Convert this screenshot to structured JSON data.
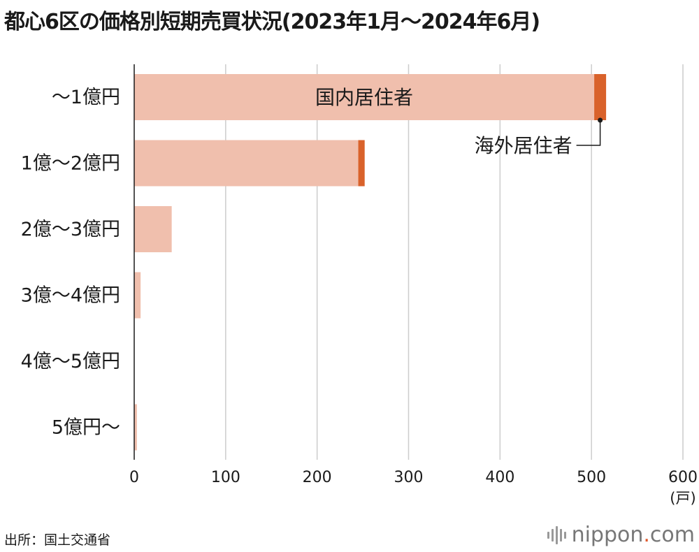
{
  "title": "都心6区の価格別短期売買状況(2023年1月〜2024年6月)",
  "source": "出所：国土交通省",
  "logo": {
    "name": "nippon",
    "dot": ".",
    "tld": "com"
  },
  "chart_data": {
    "type": "bar",
    "orientation": "horizontal",
    "stacked": true,
    "categories": [
      "〜1億円",
      "1億〜2億円",
      "2億〜3億円",
      "3億〜4億円",
      "4億〜5億円",
      "5億円〜"
    ],
    "series": [
      {
        "name": "国内居住者",
        "values": [
          503,
          245,
          41,
          7,
          0,
          3
        ],
        "color": "#f0bfad"
      },
      {
        "name": "海外居住者",
        "values": [
          13,
          7,
          0,
          0,
          0,
          0
        ],
        "color": "#d9622b"
      }
    ],
    "xlim": [
      0,
      600
    ],
    "xticks": [
      0,
      100,
      200,
      300,
      400,
      500,
      600
    ],
    "x_unit": "(戸)",
    "grid": true,
    "annotations": [
      {
        "text": "国内居住者",
        "series": 0,
        "category": 0
      },
      {
        "text": "海外居住者",
        "series": 1,
        "category": 0
      }
    ]
  }
}
